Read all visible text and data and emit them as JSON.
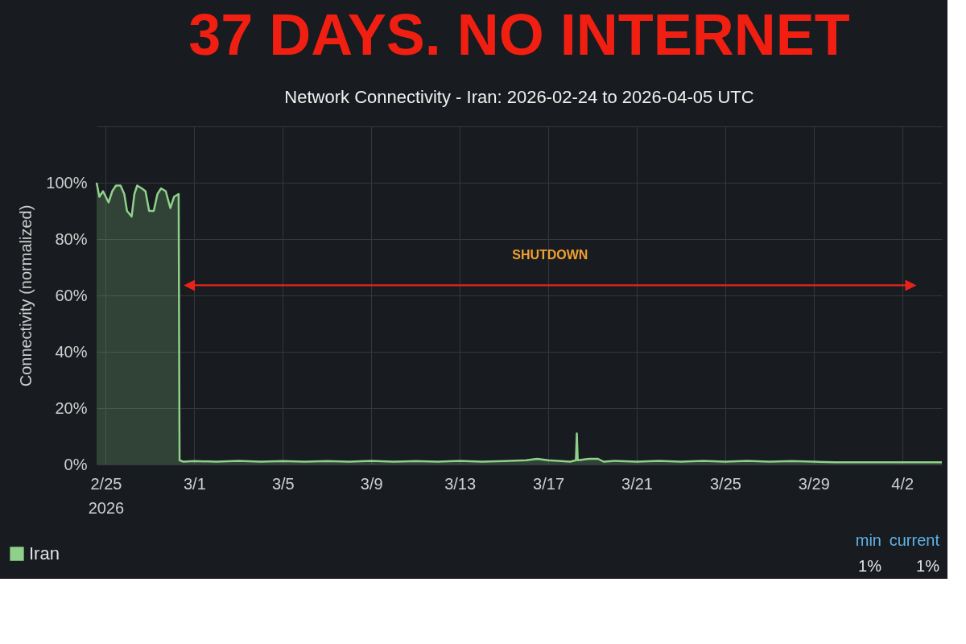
{
  "chart_data": {
    "type": "area",
    "title": "37 DAYS. NO INTERNET",
    "subtitle": "Network Connectivity - Iran: 2026-02-24 to 2026-04-05 UTC",
    "ylabel": "Connectivity (normalized)",
    "xlim": [
      "2026-02-24T14:00",
      "2026-04-03T19:00"
    ],
    "xticks": [
      {
        "value": "2026-02-25",
        "label": "2/25\n2026"
      },
      {
        "value": "2026-03-01",
        "label": "3/1"
      },
      {
        "value": "2026-03-05",
        "label": "3/5"
      },
      {
        "value": "2026-03-09",
        "label": "3/9"
      },
      {
        "value": "2026-03-13",
        "label": "3/13"
      },
      {
        "value": "2026-03-17",
        "label": "3/17"
      },
      {
        "value": "2026-03-21",
        "label": "3/21"
      },
      {
        "value": "2026-03-25",
        "label": "3/25"
      },
      {
        "value": "2026-03-29",
        "label": "3/29"
      },
      {
        "value": "2026-04-02",
        "label": "4/2"
      }
    ],
    "ylim": [
      0,
      120
    ],
    "yticks": [
      {
        "value": 0,
        "label": "0%"
      },
      {
        "value": 20,
        "label": "20%"
      },
      {
        "value": 40,
        "label": "40%"
      },
      {
        "value": 60,
        "label": "60%"
      },
      {
        "value": 80,
        "label": "80%"
      },
      {
        "value": 100,
        "label": "100%"
      },
      {
        "value": 120,
        "label": null
      }
    ],
    "grid": true,
    "legend": "bottom left",
    "series": [
      {
        "name": "Iran",
        "color": "#8fd18a",
        "x": [
          "2026-02-24T14:00",
          "2026-02-24T17:00",
          "2026-02-24T21:00",
          "2026-02-25T03:00",
          "2026-02-25T07:00",
          "2026-02-25T11:00",
          "2026-02-25T16:00",
          "2026-02-25T20:00",
          "2026-02-25T23:00",
          "2026-02-26T04:00",
          "2026-02-26T07:00",
          "2026-02-26T10:00",
          "2026-02-26T15:00",
          "2026-02-26T19:00",
          "2026-02-26T23:00",
          "2026-02-27T04:00",
          "2026-02-27T08:00",
          "2026-02-27T12:00",
          "2026-02-27T17:00",
          "2026-02-27T22:00",
          "2026-02-28T02:00",
          "2026-02-28T07:00",
          "2026-02-28T08:00",
          "2026-02-28T12:00",
          "2026-03-01T00:00",
          "2026-03-02T00:00",
          "2026-03-03T00:00",
          "2026-03-04T00:00",
          "2026-03-05T00:00",
          "2026-03-06T00:00",
          "2026-03-07T00:00",
          "2026-03-08T00:00",
          "2026-03-09T00:00",
          "2026-03-10T00:00",
          "2026-03-11T00:00",
          "2026-03-12T00:00",
          "2026-03-13T00:00",
          "2026-03-14T00:00",
          "2026-03-15T00:00",
          "2026-03-16T00:00",
          "2026-03-16T12:00",
          "2026-03-17T00:00",
          "2026-03-18T00:00",
          "2026-03-18T06:00",
          "2026-03-18T07:00",
          "2026-03-18T08:00",
          "2026-03-18T20:00",
          "2026-03-19T06:00",
          "2026-03-19T12:00",
          "2026-03-20T00:00",
          "2026-03-21T00:00",
          "2026-03-22T00:00",
          "2026-03-23T00:00",
          "2026-03-24T00:00",
          "2026-03-25T00:00",
          "2026-03-26T00:00",
          "2026-03-27T00:00",
          "2026-03-28T00:00",
          "2026-03-29T00:00",
          "2026-03-30T00:00",
          "2026-03-31T00:00",
          "2026-04-01T00:00",
          "2026-04-02T00:00",
          "2026-04-03T00:00",
          "2026-04-03T19:00"
        ],
        "values": [
          100,
          95,
          97,
          93,
          97,
          99,
          99,
          96,
          90,
          88,
          96,
          99,
          98,
          97,
          90,
          90,
          96,
          98,
          97,
          91,
          95,
          96,
          1.5,
          1,
          1.2,
          1,
          1.3,
          1,
          1.2,
          1,
          1.2,
          1,
          1.3,
          1,
          1.2,
          1,
          1.3,
          1,
          1.2,
          1.5,
          2,
          1.5,
          1,
          1.5,
          11,
          1.5,
          2,
          2,
          1,
          1.3,
          1,
          1.3,
          1,
          1.3,
          1,
          1.3,
          1,
          1.2,
          1,
          0.8,
          0.8,
          0.8,
          0.8,
          0.8,
          0.8
        ]
      }
    ],
    "annotations": [
      "SHUTDOWN",
      "min",
      "current",
      "1%",
      "1%"
    ]
  }
}
